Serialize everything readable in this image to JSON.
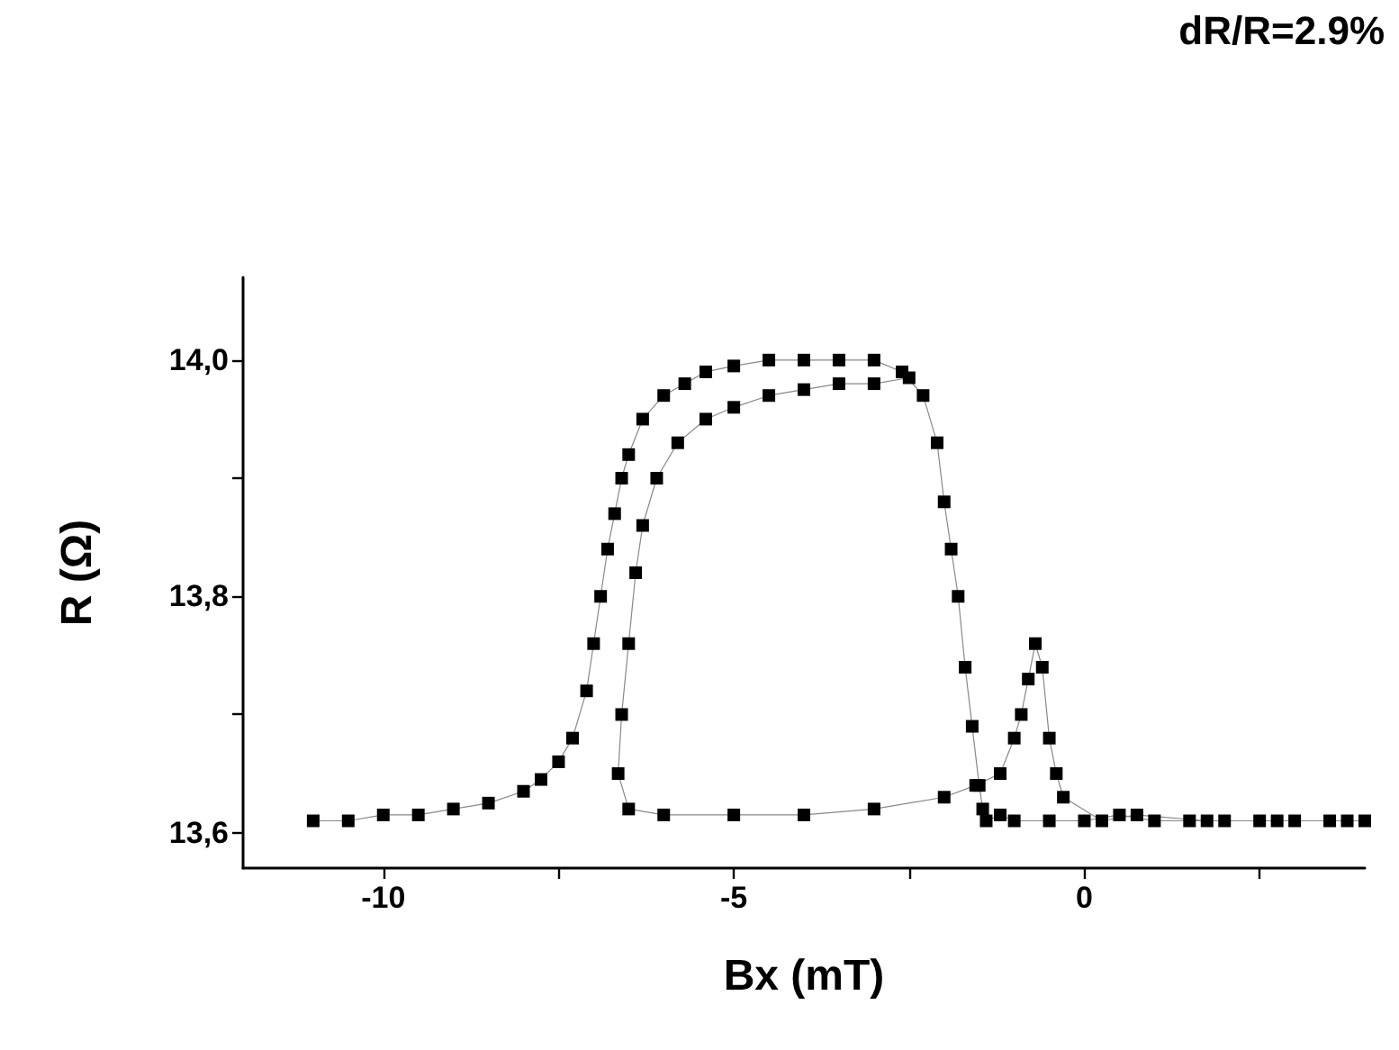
{
  "chart_data": {
    "type": "line",
    "xlabel": "Bx (mT)",
    "ylabel": "R (Ω)",
    "annotations": [
      "dR/R=2.9%"
    ],
    "marker": "square",
    "line_style": "solid",
    "grid": false,
    "xlim": [
      -12,
      4
    ],
    "xticks": [
      {
        "value": -10,
        "label": "-10"
      },
      {
        "value": -7.5,
        "label": null
      },
      {
        "value": -5,
        "label": "-5"
      },
      {
        "value": -2.5,
        "label": null
      },
      {
        "value": 0,
        "label": "0"
      },
      {
        "value": 2.5,
        "label": null
      }
    ],
    "ylim": [
      13.57,
      14.07
    ],
    "yticks": [
      {
        "value": 13.6,
        "label": "13,6"
      },
      {
        "value": 13.7,
        "label": null
      },
      {
        "value": 13.8,
        "label": "13,8"
      },
      {
        "value": 13.9,
        "label": null
      },
      {
        "value": 14.0,
        "label": "14,0"
      }
    ],
    "series": [
      {
        "color": "#000000",
        "x": [
          -11,
          -10.5,
          -10,
          -9.5,
          -9,
          -8.5,
          -8,
          -7.75,
          -7.5,
          -7.3,
          -7.1,
          -7.0,
          -6.9,
          -6.8,
          -6.7,
          -6.6,
          -6.5,
          -6.3,
          -6.0,
          -5.7,
          -5.4,
          -5.0,
          -4.5,
          -4.0,
          -3.5,
          -3.0,
          -2.6,
          -2.3,
          -2.1,
          -2.0,
          -1.9,
          -1.8,
          -1.7,
          -1.6,
          -1.5,
          -1.45,
          -1.4,
          -1.2,
          -1,
          -0.5,
          0,
          0.5,
          1,
          1.5,
          2,
          2.5,
          3,
          3.5,
          4
        ],
        "values": [
          13.61,
          13.61,
          13.615,
          13.615,
          13.62,
          13.625,
          13.635,
          13.645,
          13.66,
          13.68,
          13.72,
          13.76,
          13.8,
          13.84,
          13.87,
          13.9,
          13.92,
          13.95,
          13.97,
          13.98,
          13.99,
          13.995,
          14.0,
          14.0,
          14.0,
          14.0,
          13.99,
          13.97,
          13.93,
          13.88,
          13.84,
          13.8,
          13.74,
          13.69,
          13.64,
          13.62,
          13.61,
          13.615,
          13.61,
          13.61,
          13.61,
          13.615,
          13.61,
          13.61,
          13.61,
          13.61,
          13.61,
          13.61,
          13.61
        ]
      },
      {
        "color": "#000000",
        "x": [
          3.75,
          2.75,
          1.75,
          0.75,
          0.25,
          -0.3,
          -0.4,
          -0.5,
          -0.6,
          -0.7,
          -0.8,
          -0.9,
          -1.0,
          -1.2,
          -1.55,
          -2,
          -3,
          -4,
          -5,
          -6,
          -6.5,
          -6.65,
          -6.6,
          -6.5,
          -6.4,
          -6.3,
          -6.1,
          -5.8,
          -5.4,
          -5.0,
          -4.5,
          -4.0,
          -3.5,
          -3.0,
          -2.5
        ],
        "values": [
          13.61,
          13.61,
          13.61,
          13.615,
          13.61,
          13.63,
          13.65,
          13.68,
          13.74,
          13.76,
          13.73,
          13.7,
          13.68,
          13.65,
          13.64,
          13.63,
          13.62,
          13.615,
          13.615,
          13.615,
          13.62,
          13.65,
          13.7,
          13.76,
          13.82,
          13.86,
          13.9,
          13.93,
          13.95,
          13.96,
          13.97,
          13.975,
          13.98,
          13.98,
          13.985
        ]
      }
    ]
  }
}
